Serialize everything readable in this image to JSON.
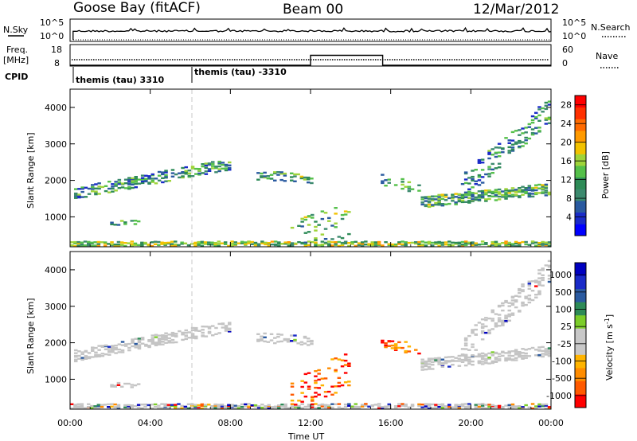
{
  "header": {
    "station": "Goose Bay (fitACF)",
    "beam": "Beam 00",
    "date": "12/Mar/2012"
  },
  "nsky_panel": {
    "left_label": "N.Sky",
    "right_label": "N.Search",
    "left_ticks": [
      "10^5",
      "10^0"
    ],
    "right_ticks": [
      "10^5",
      "10^0"
    ]
  },
  "freq_panel": {
    "left_label_line1": "Freq.",
    "left_label_line2": "[MHz]",
    "right_label": "Nave",
    "left_ticks": [
      "18",
      "8"
    ],
    "right_ticks": [
      "60",
      "0"
    ],
    "nave_segments": [
      {
        "from": 0,
        "to": 12,
        "value": 0
      },
      {
        "from": 12,
        "to": 15.6,
        "value": 30
      },
      {
        "from": 15.6,
        "to": 24,
        "value": 0
      }
    ]
  },
  "cpid_panel": {
    "label": "CPID",
    "programs": [
      {
        "name": "themis (tau) 3310",
        "start": 0
      },
      {
        "name": "themis (tau) -3310",
        "start": 6
      }
    ]
  },
  "colors": {
    "power_scale": [
      "#0000ff",
      "#1a2bc8",
      "#2a5aa0",
      "#3c8a6e",
      "#2e8b57",
      "#55c04a",
      "#9fd43a",
      "#f2c200",
      "#ff9a00",
      "#ff6a00",
      "#ff3000",
      "#ff0000"
    ],
    "velocity_scale": [
      "#ff0000",
      "#ff5a00",
      "#ff8c00",
      "#ffb400",
      "#c8c8c8",
      "#c8c8c8",
      "#7ccd2a",
      "#2e8b57",
      "#2a5aa0",
      "#1a2bc8",
      "#0000c0"
    ],
    "ground_scatter": "#c4c4c4",
    "cpid_divider": "#c8c8c8"
  },
  "chart_data": [
    {
      "type": "heatmap",
      "title": "Power",
      "xlabel": "",
      "ylabel": "Slant Range [km]",
      "colorbar_label": "Power [dB]",
      "colorbar_ticks": [
        4,
        8,
        12,
        16,
        20,
        24,
        28
      ],
      "colorbar_range": [
        0,
        30
      ],
      "xlim": [
        0,
        24
      ],
      "ylim": [
        180,
        4500
      ],
      "x_ticks": [
        0,
        4,
        8,
        12,
        16,
        20,
        24
      ],
      "y_ticks": [
        1000,
        2000,
        3000,
        4000
      ],
      "scatter_regions": [
        {
          "t0": 0.2,
          "t1": 8.1,
          "r_start": 1650,
          "r_end": 2450,
          "width": 320,
          "density": 0.55,
          "level": 9
        },
        {
          "t0": 9.3,
          "t1": 12.1,
          "r_start": 2150,
          "r_end": 2050,
          "width": 280,
          "density": 0.35,
          "level": 11
        },
        {
          "t0": 15.5,
          "t1": 17.5,
          "r_start": 2000,
          "r_end": 1800,
          "width": 300,
          "density": 0.3,
          "level": 10
        },
        {
          "t0": 17.5,
          "t1": 24.0,
          "r_start": 1400,
          "r_end": 1750,
          "width": 300,
          "density": 0.65,
          "level": 11
        },
        {
          "t0": 19.5,
          "t1": 24.0,
          "r_start": 1800,
          "r_end": 3900,
          "width": 700,
          "density": 0.3,
          "level": 8
        },
        {
          "t0": 0.0,
          "t1": 24.0,
          "r_start": 230,
          "r_end": 230,
          "width": 160,
          "density": 0.75,
          "level": 14
        },
        {
          "t0": 11.0,
          "t1": 14.0,
          "r_start": 500,
          "r_end": 900,
          "width": 900,
          "density": 0.12,
          "level": 12
        },
        {
          "t0": 2.0,
          "t1": 3.5,
          "r_start": 850,
          "r_end": 850,
          "width": 150,
          "density": 0.35,
          "level": 10
        }
      ]
    },
    {
      "type": "heatmap",
      "title": "Velocity",
      "xlabel": "Time UT",
      "ylabel": "Slant Range [km]",
      "colorbar_label": "Velocity [m s^-1]",
      "colorbar_ticks": [
        "1000",
        "500",
        "100",
        "25",
        "-25",
        "-100",
        "-500",
        "-1000"
      ],
      "xlim": [
        0,
        24
      ],
      "ylim": [
        180,
        4500
      ],
      "x_ticks": [
        0,
        4,
        8,
        12,
        16,
        20,
        24
      ],
      "x_tick_labels": [
        "00:00",
        "04:00",
        "08:00",
        "12:00",
        "16:00",
        "20:00",
        "00:00"
      ],
      "y_ticks": [
        1000,
        2000,
        3000,
        4000
      ],
      "scatter_regions": [
        {
          "t0": 0.2,
          "t1": 8.1,
          "r_start": 1650,
          "r_end": 2450,
          "width": 320,
          "density": 0.55,
          "kind": "ground"
        },
        {
          "t0": 9.3,
          "t1": 12.1,
          "r_start": 2150,
          "r_end": 2050,
          "width": 280,
          "density": 0.35,
          "kind": "ground"
        },
        {
          "t0": 15.5,
          "t1": 17.5,
          "r_start": 2000,
          "r_end": 1800,
          "width": 300,
          "density": 0.3,
          "kind": "negative"
        },
        {
          "t0": 17.5,
          "t1": 24.0,
          "r_start": 1400,
          "r_end": 1750,
          "width": 300,
          "density": 0.65,
          "kind": "ground"
        },
        {
          "t0": 19.5,
          "t1": 24.0,
          "r_start": 1800,
          "r_end": 3900,
          "width": 700,
          "density": 0.3,
          "kind": "ground"
        },
        {
          "t0": 0.0,
          "t1": 24.0,
          "r_start": 230,
          "r_end": 230,
          "width": 160,
          "density": 0.75,
          "kind": "mixed"
        },
        {
          "t0": 11.0,
          "t1": 14.0,
          "r_start": 500,
          "r_end": 1300,
          "width": 1000,
          "density": 0.18,
          "kind": "negative"
        },
        {
          "t0": 2.0,
          "t1": 3.5,
          "r_start": 850,
          "r_end": 850,
          "width": 150,
          "density": 0.35,
          "kind": "ground"
        }
      ]
    }
  ]
}
